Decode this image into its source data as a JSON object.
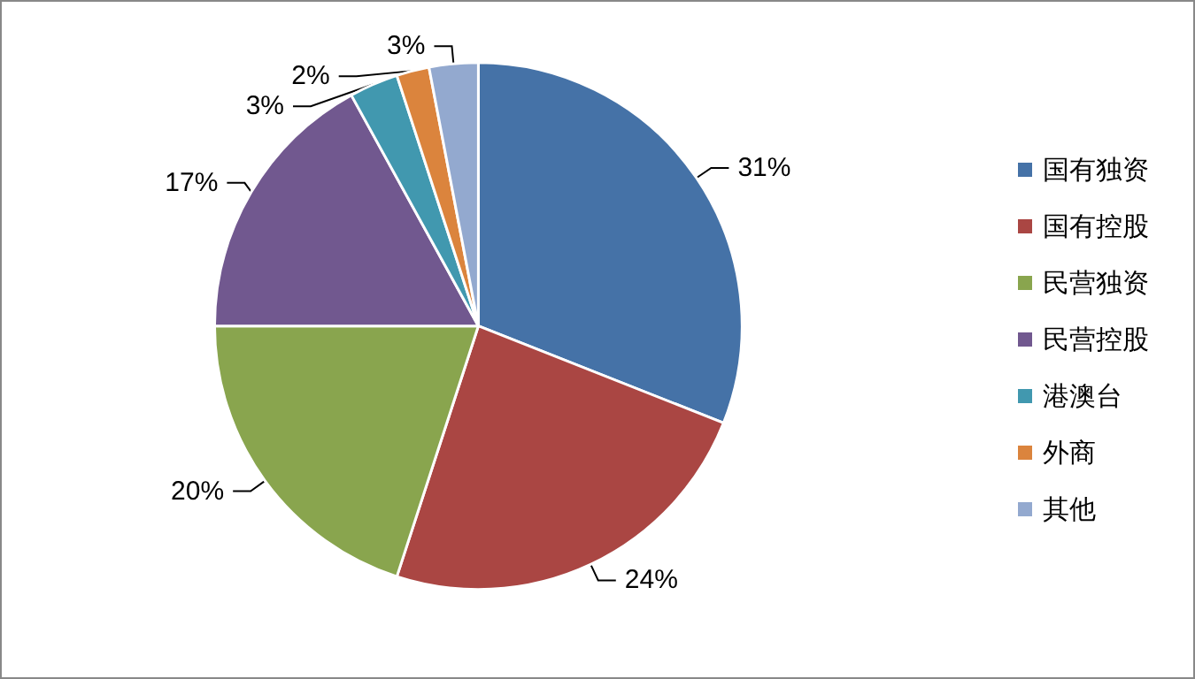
{
  "chart_data": {
    "type": "pie",
    "categories": [
      "国有独资",
      "国有控股",
      "民营独资",
      "民营控股",
      "港澳台",
      "外商",
      "其他"
    ],
    "values": [
      31,
      24,
      20,
      17,
      3,
      2,
      3
    ],
    "colors": [
      "#4572a7",
      "#aa4643",
      "#89a54e",
      "#71588f",
      "#4198af",
      "#db843d",
      "#93a9cf"
    ],
    "value_labels": [
      "31%",
      "24%",
      "20%",
      "17%",
      "3%",
      "2%",
      "3%"
    ],
    "legend": "right"
  }
}
